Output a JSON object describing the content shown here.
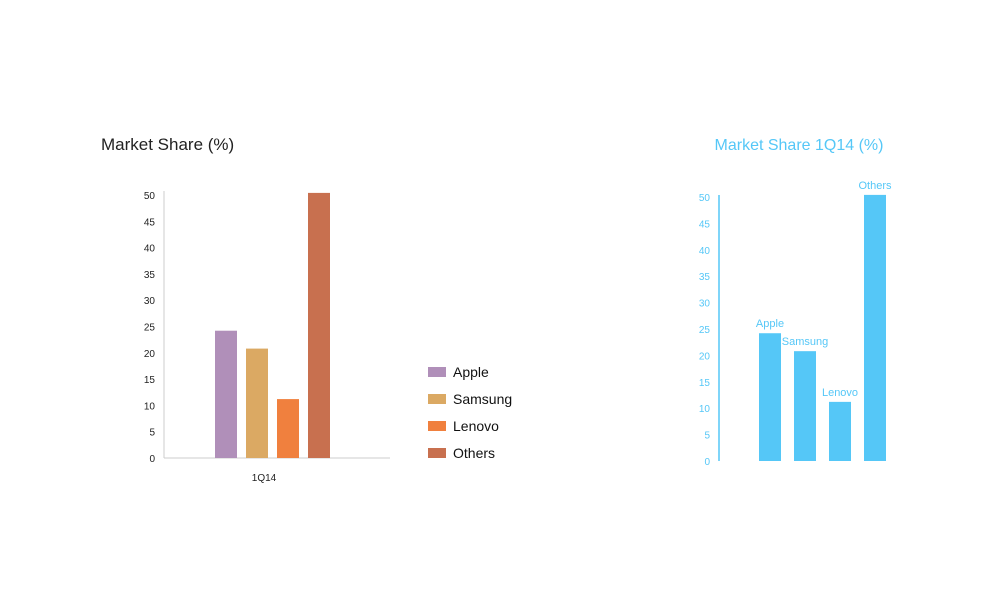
{
  "chart_data": [
    {
      "type": "bar",
      "title": "Market Share (%)",
      "categories": [
        "1Q14"
      ],
      "series": [
        {
          "name": "Apple",
          "values": [
            24.2
          ],
          "color": "#b08fb9"
        },
        {
          "name": "Samsung",
          "values": [
            20.8
          ],
          "color": "#dba963"
        },
        {
          "name": "Lenovo",
          "values": [
            11.2
          ],
          "color": "#f0803e"
        },
        {
          "name": "Others",
          "values": [
            50.4
          ],
          "color": "#c8704f"
        }
      ],
      "yticks": [
        "0",
        "5",
        "10",
        "15",
        "20",
        "25",
        "30",
        "35",
        "40",
        "45",
        "50"
      ],
      "ylim": [
        0,
        50
      ],
      "legend_position": "right",
      "grid": false
    },
    {
      "type": "bar",
      "title": "Market Share 1Q14 (%)",
      "categories": [
        "Apple",
        "Samsung",
        "Lenovo",
        "Others"
      ],
      "values": [
        24.2,
        20.8,
        11.2,
        50.4
      ],
      "yticks": [
        "0",
        "5",
        "10",
        "15",
        "20",
        "25",
        "30",
        "35",
        "40",
        "45",
        "50"
      ],
      "ylim": [
        0,
        50
      ],
      "color": "#55c7f7",
      "data_labels": "category names above bars",
      "grid": false
    }
  ]
}
